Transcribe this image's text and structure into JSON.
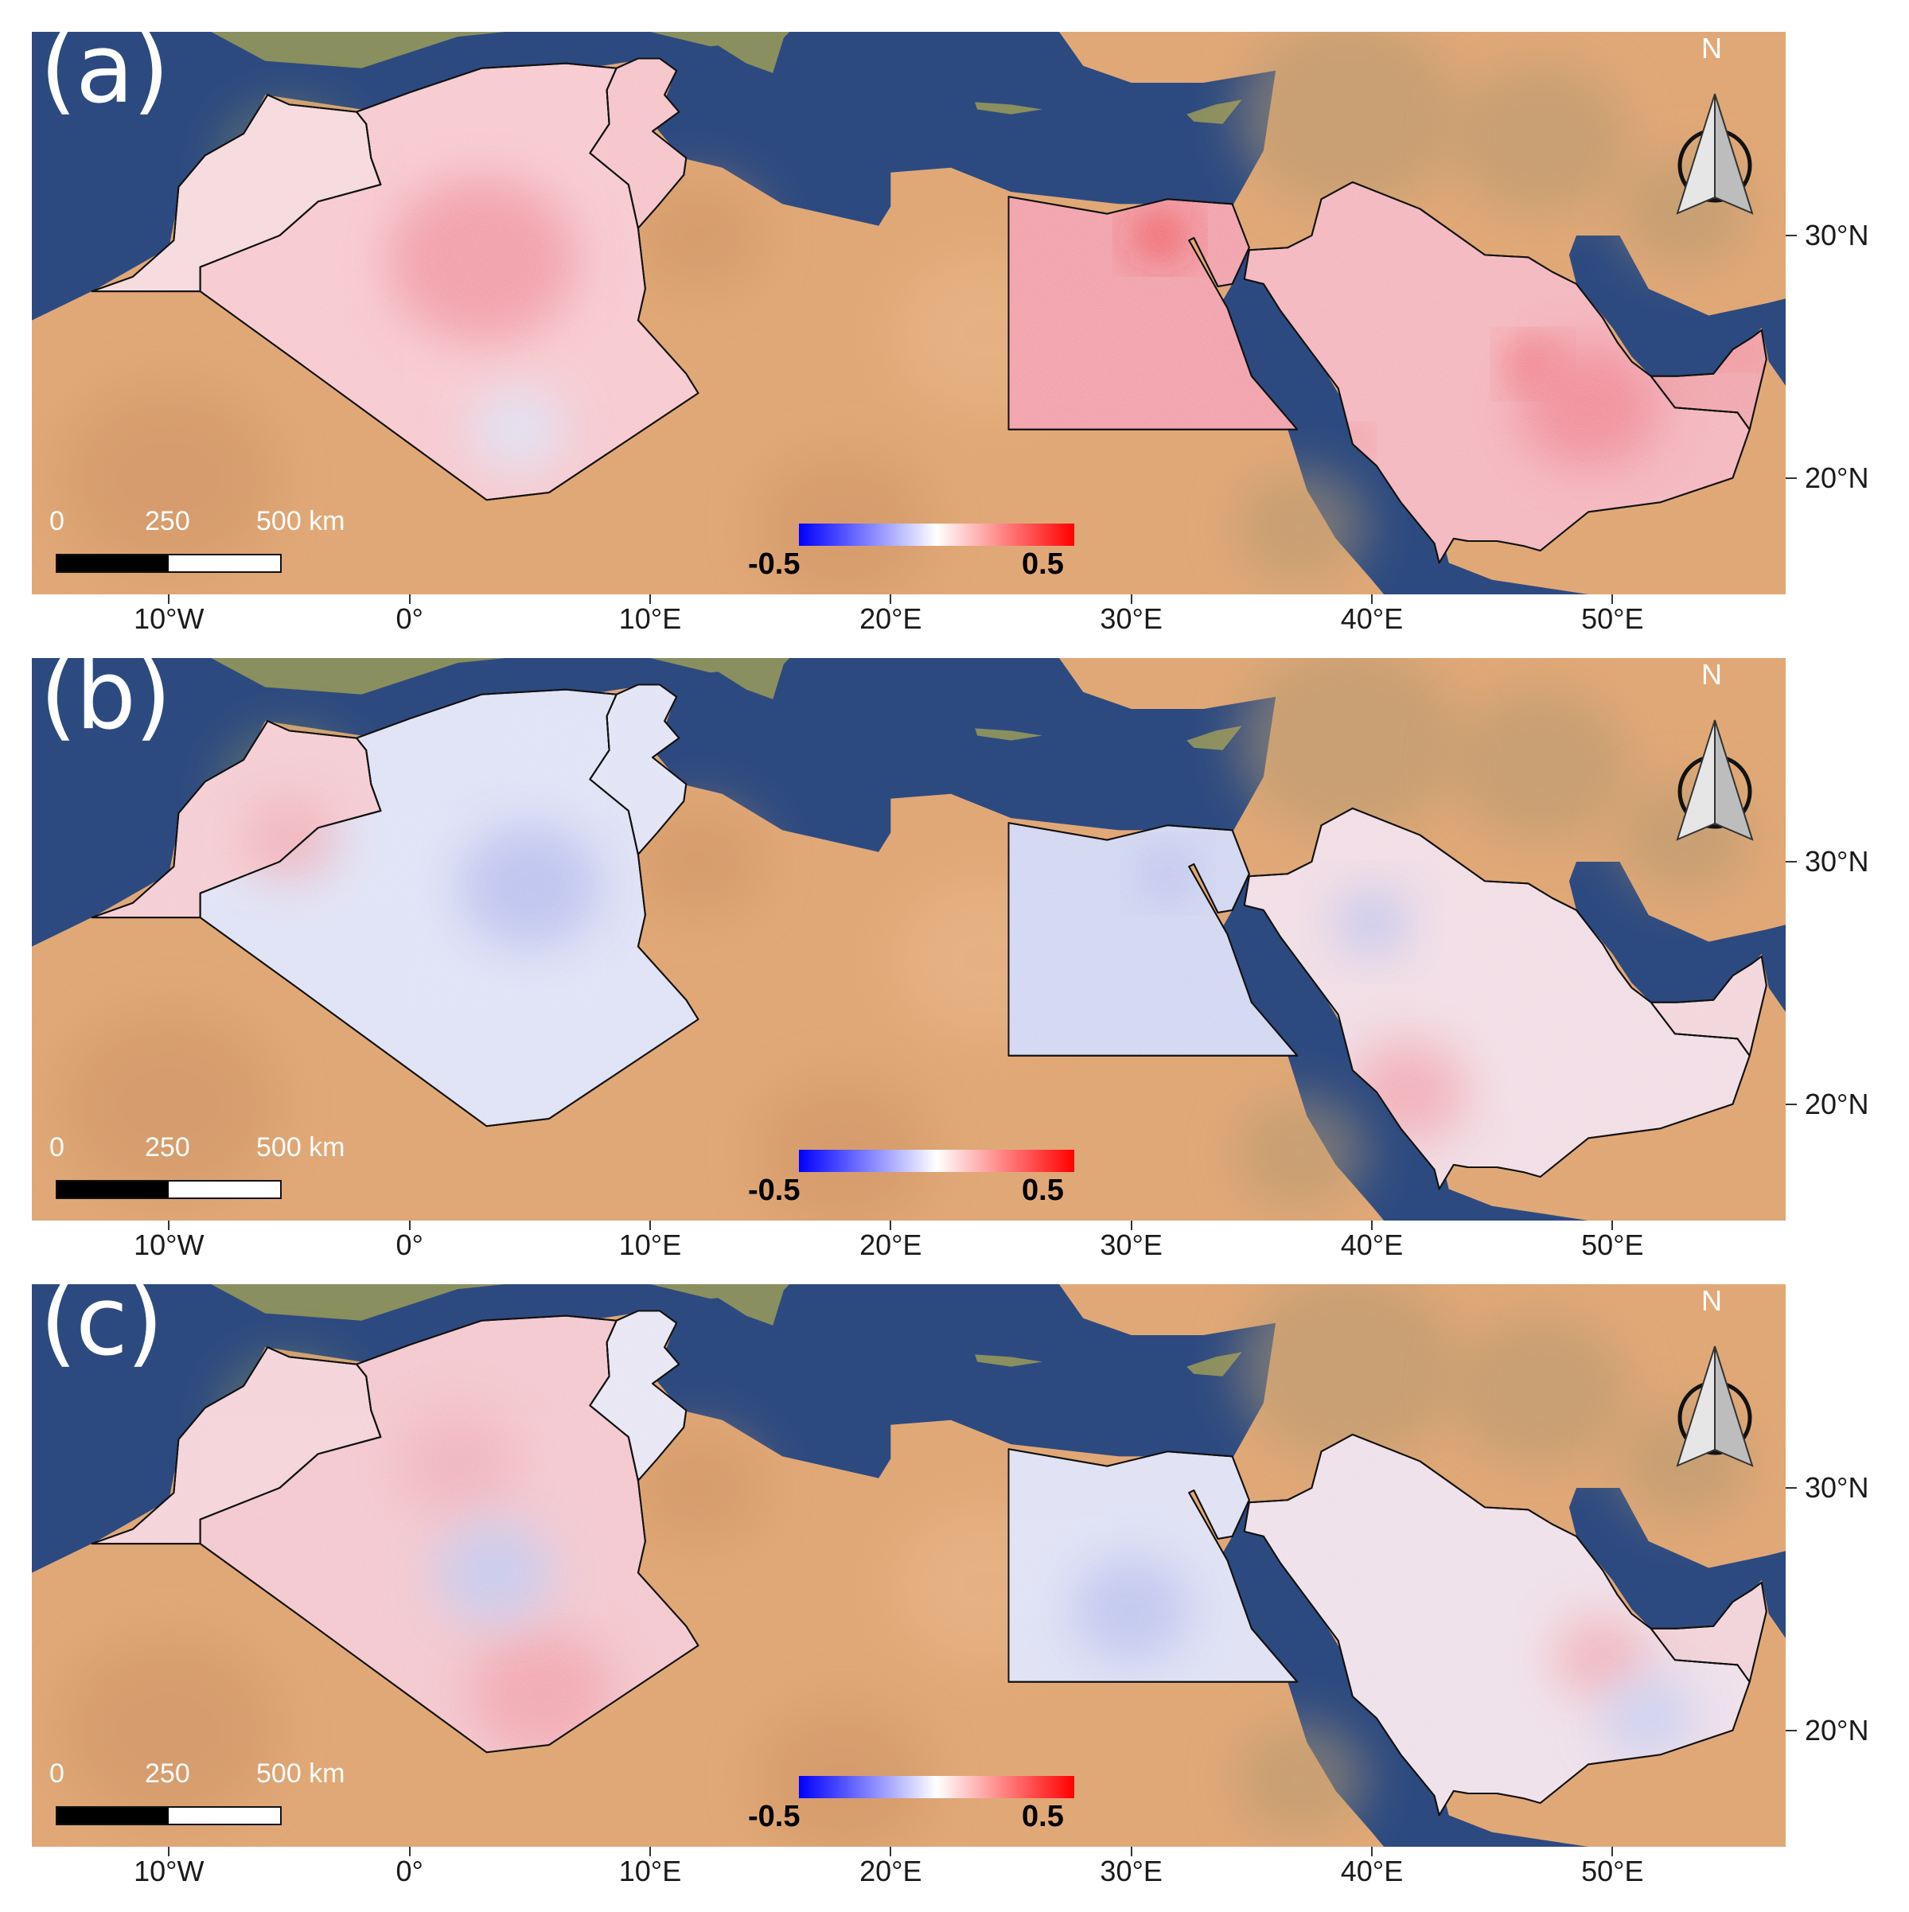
{
  "panels": [
    {
      "label": "(a)",
      "countries": {
        "Morocco": "#f6d9dd",
        "Algeria": "#f7c9cf",
        "Tunisia": "#f5c4ca",
        "Egypt": "#f2a1ab",
        "SaudiArabia": "#f4b6be",
        "UAE": "#f0a6ad"
      },
      "hotspots": [
        {
          "lon": 31.2,
          "lat": 30.0,
          "color": "#ee2222",
          "r": 1.0
        },
        {
          "lon": 46.7,
          "lat": 24.7,
          "color": "#ee3333",
          "r": 0.9
        },
        {
          "lon": 55.3,
          "lat": 25.2,
          "color": "#ee3333",
          "r": 0.5
        },
        {
          "lon": 39.2,
          "lat": 21.5,
          "color": "#ee4444",
          "r": 0.5
        },
        {
          "lon": 3.0,
          "lat": 29.0,
          "color": "#f19aa5",
          "r": 4.0
        },
        {
          "lon": 49.0,
          "lat": 23.0,
          "color": "#f08a97",
          "r": 3.0
        },
        {
          "lon": 4.5,
          "lat": 22.0,
          "color": "#dfe3f6",
          "r": 2.0
        }
      ]
    },
    {
      "label": "(b)",
      "countries": {
        "Morocco": "#f4cdd3",
        "Algeria": "#dfe2f5",
        "Tunisia": "#e2e4f6",
        "Egypt": "#d2d7f2",
        "SaudiArabia": "#f1dde5",
        "UAE": "#f2d6dc"
      },
      "hotspots": [
        {
          "lon": 5.0,
          "lat": 29.0,
          "color": "#b9c0ee",
          "r": 3.0
        },
        {
          "lon": 31.5,
          "lat": 29.5,
          "color": "#aab2ea",
          "r": 1.0
        },
        {
          "lon": 40.0,
          "lat": 27.5,
          "color": "#bcc2ee",
          "r": 1.5
        },
        {
          "lon": 41.5,
          "lat": 20.5,
          "color": "#f2aab4",
          "r": 2.5
        },
        {
          "lon": -5.0,
          "lat": 31.0,
          "color": "#f0b0b9",
          "r": 2.0
        }
      ]
    },
    {
      "label": "(c)",
      "countries": {
        "Morocco": "#f4d3d9",
        "Algeria": "#f3c7ce",
        "Tunisia": "#e8e6f4",
        "Egypt": "#dfe1f4",
        "SaudiArabia": "#efe0e9",
        "UAE": "#f1d2d8"
      },
      "hotspots": [
        {
          "lon": 5.5,
          "lat": 21.5,
          "color": "#f2a5ae",
          "r": 3.0
        },
        {
          "lon": 2.0,
          "lat": 31.0,
          "color": "#f0b2bb",
          "r": 2.5
        },
        {
          "lon": 3.5,
          "lat": 26.5,
          "color": "#c5cbf0",
          "r": 2.5
        },
        {
          "lon": 30.0,
          "lat": 25.0,
          "color": "#bcc3ee",
          "r": 2.5
        },
        {
          "lon": 49.5,
          "lat": 23.0,
          "color": "#f2afb7",
          "r": 2.0
        },
        {
          "lon": 51.5,
          "lat": 20.5,
          "color": "#c9cdf0",
          "r": 2.0
        }
      ]
    }
  ],
  "colorbar": {
    "min_label": "-0.5",
    "max_label": "0.5",
    "min_color": "#0000ff",
    "mid_color": "#ffffff",
    "max_color": "#ff0000"
  },
  "scale_bar": {
    "labels": [
      "0",
      "250",
      "500 km"
    ]
  },
  "north_arrow": {
    "letter": "N"
  },
  "lat_labels": [
    "30°N",
    "20°N"
  ],
  "lon_labels": [
    "10°W",
    "0°",
    "10°E",
    "20°E",
    "30°E",
    "40°E",
    "50°E"
  ],
  "basemap_colors": {
    "sea": "#2d4a80",
    "desert": "#e1a877",
    "desert_dark": "#cf9466",
    "vegetation": "#8a8f5f",
    "mountain": "#b49a72"
  }
}
